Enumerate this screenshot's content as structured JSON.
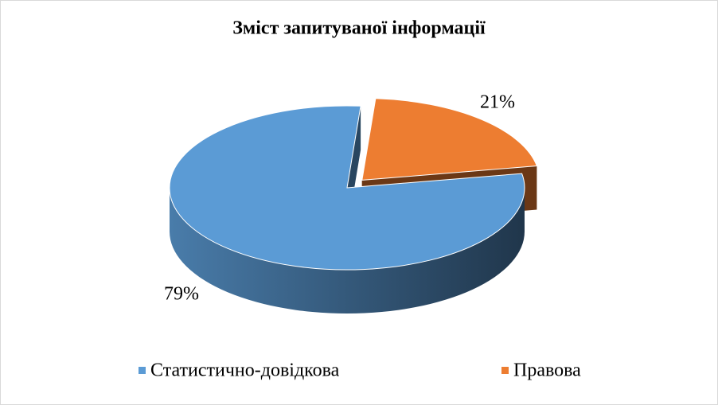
{
  "chart_data": {
    "type": "pie3d",
    "title": "Зміст запитуваної інформації",
    "categories": [
      "Статистично-довідкова",
      "Правова"
    ],
    "values": [
      79,
      21
    ],
    "value_labels": [
      "79%",
      "21%"
    ],
    "colors": [
      "#5b9bd5",
      "#ed7d31"
    ],
    "legend": "bottom"
  }
}
